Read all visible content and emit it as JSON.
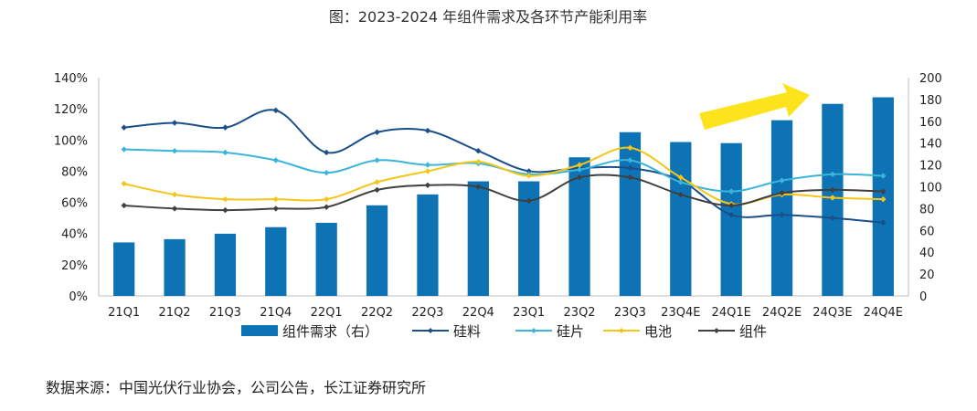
{
  "chart_data": {
    "type": "bar+line",
    "title": "图：2023-2024 年组件需求及各环节产能利用率",
    "source": "数据来源：中国光伏行业协会，公司公告，长江证券研究所",
    "categories": [
      "21Q1",
      "21Q2",
      "21Q3",
      "21Q4",
      "22Q1",
      "22Q2",
      "22Q3",
      "22Q4",
      "23Q1",
      "23Q2",
      "23Q3",
      "23Q4E",
      "24Q1E",
      "24Q2E",
      "24Q3E",
      "24Q4E"
    ],
    "left_axis": {
      "min": 0,
      "max": 140,
      "step": 20,
      "format": "percent",
      "ticks": [
        "0%",
        "20%",
        "40%",
        "60%",
        "80%",
        "100%",
        "120%",
        "140%"
      ]
    },
    "right_axis": {
      "min": 0,
      "max": 200,
      "step": 20,
      "ticks": [
        "0",
        "20",
        "40",
        "60",
        "80",
        "100",
        "120",
        "140",
        "160",
        "180",
        "200"
      ]
    },
    "bar_series": {
      "name": "组件需求（右）",
      "color": "#0d73b4",
      "values": [
        49,
        52,
        57,
        63,
        67,
        83,
        93,
        105,
        105,
        127,
        150,
        141,
        140,
        161,
        176,
        182
      ]
    },
    "line_series": [
      {
        "name": "硅料",
        "color": "#1a4f8a",
        "values": [
          108,
          111,
          108,
          119,
          92,
          105,
          106,
          93,
          80,
          82,
          82,
          74,
          52,
          52,
          50,
          47
        ]
      },
      {
        "name": "硅片",
        "color": "#39b5db",
        "values": [
          94,
          93,
          92,
          87,
          79,
          87,
          84,
          85,
          78,
          81,
          87,
          73,
          67,
          74,
          78,
          77
        ]
      },
      {
        "name": "电池",
        "color": "#f5c518",
        "values": [
          72,
          65,
          62,
          62,
          62,
          73,
          80,
          86,
          77,
          84,
          95,
          76,
          59,
          65,
          63,
          62
        ]
      },
      {
        "name": "组件",
        "color": "#404040",
        "values": [
          58,
          56,
          55,
          56,
          57,
          68,
          71,
          70,
          61,
          76,
          76,
          65,
          58,
          66,
          68,
          67
        ]
      }
    ],
    "annotation": {
      "type": "arrow",
      "color": "#fde31b",
      "meaning": "upward trend"
    },
    "legend_position": "bottom"
  }
}
